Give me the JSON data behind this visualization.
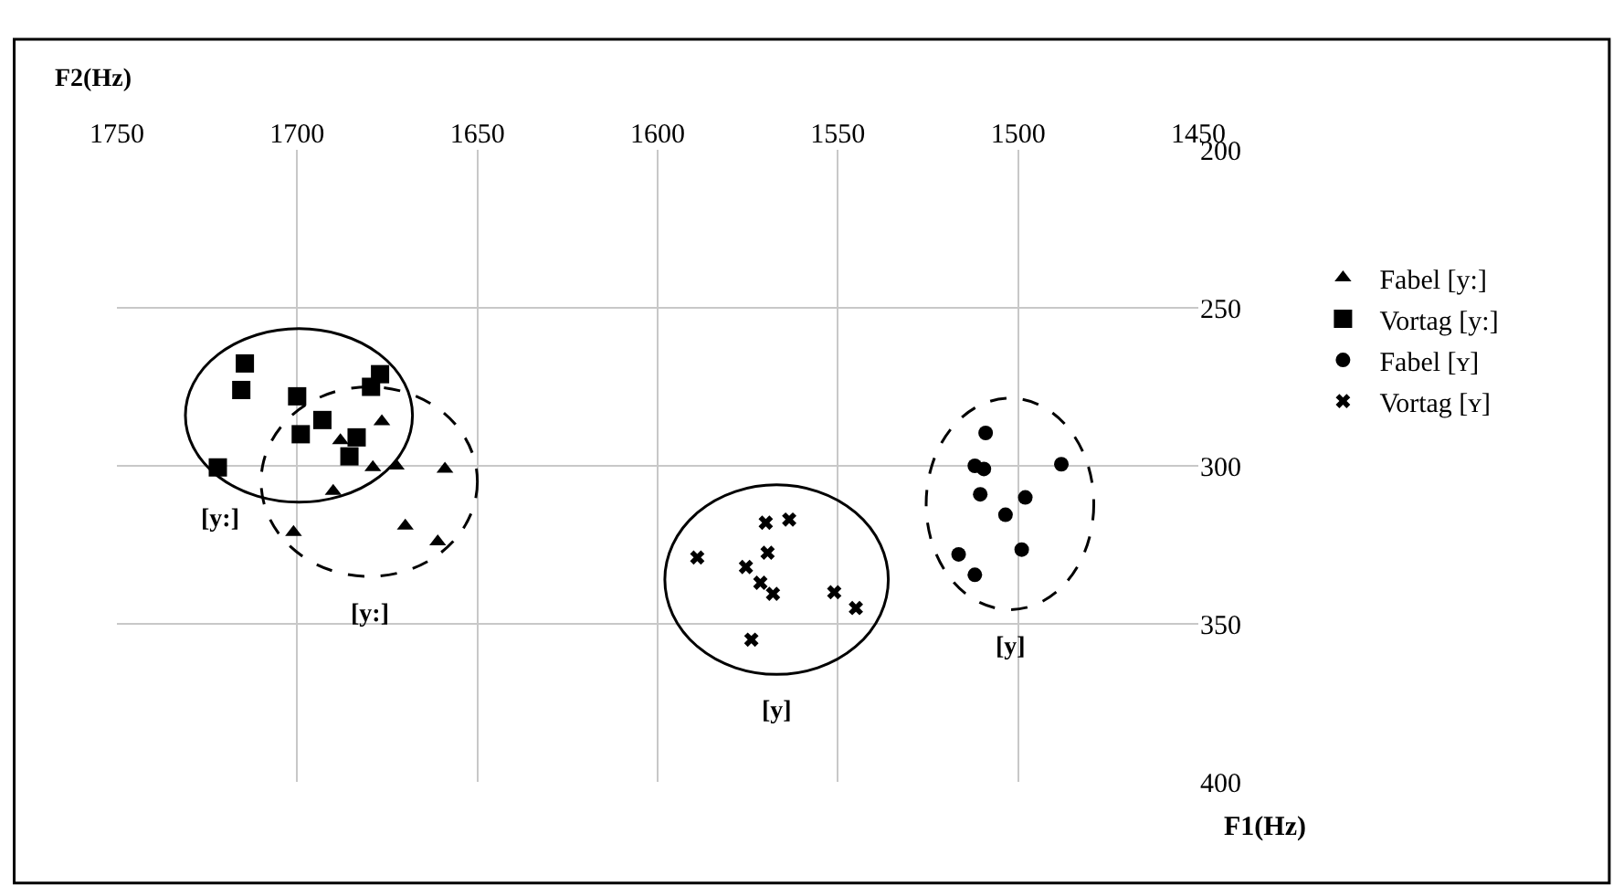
{
  "chart_data": {
    "type": "scatter",
    "xlabel": "F2(Hz)",
    "ylabel": "F1(Hz)",
    "xlim": [
      1750,
      1450
    ],
    "xticks": [
      1750,
      1700,
      1650,
      1600,
      1550,
      1500,
      1450
    ],
    "ylim": [
      400,
      200
    ],
    "yticks": [
      200,
      250,
      300,
      350,
      400
    ],
    "grid": true,
    "legend": "right",
    "series": [
      {
        "name": "Fabel [y:]",
        "color": "#000000",
        "marker": "triangle",
        "line_style": "dashed",
        "x": [
          1676.5,
          1688,
          1679,
          1672.5,
          1659,
          1690,
          1701,
          1670,
          1661
        ],
        "values": [
          286,
          292,
          300.5,
          300,
          301,
          308,
          321,
          319,
          324
        ]
      },
      {
        "name": "Vortag [y:]",
        "color": "#000000",
        "marker": "square",
        "line_style": "solid",
        "x": [
          1714.5,
          1715.5,
          1700,
          1693,
          1699,
          1683.5,
          1685.5,
          1677,
          1679.5,
          1722
        ],
        "values": [
          267.6,
          276,
          278,
          285.5,
          290,
          291,
          297,
          271,
          275,
          300.5
        ]
      },
      {
        "name": "Fabel [ʏ]",
        "color": "#000000",
        "marker": "circle",
        "line_style": "dashed",
        "x": [
          1509,
          1512,
          1509.5,
          1488,
          1510.5,
          1498,
          1503.5,
          1499,
          1516.5,
          1512
        ],
        "values": [
          289.6,
          300,
          301,
          299.5,
          309,
          310,
          315.5,
          326.5,
          328,
          334.5
        ]
      },
      {
        "name": "Vortag [ʏ]",
        "color": "#000000",
        "marker": "cross",
        "line_style": "solid",
        "x": [
          1570,
          1563.5,
          1569.5,
          1589,
          1575.5,
          1571.5,
          1568,
          1551,
          1545,
          1574
        ],
        "values": [
          318,
          317,
          327.5,
          329,
          332,
          337,
          340.5,
          340,
          345,
          355
        ]
      }
    ],
    "annotations": [
      "[y:]",
      "[y:]",
      "[y]",
      "[y]"
    ]
  }
}
